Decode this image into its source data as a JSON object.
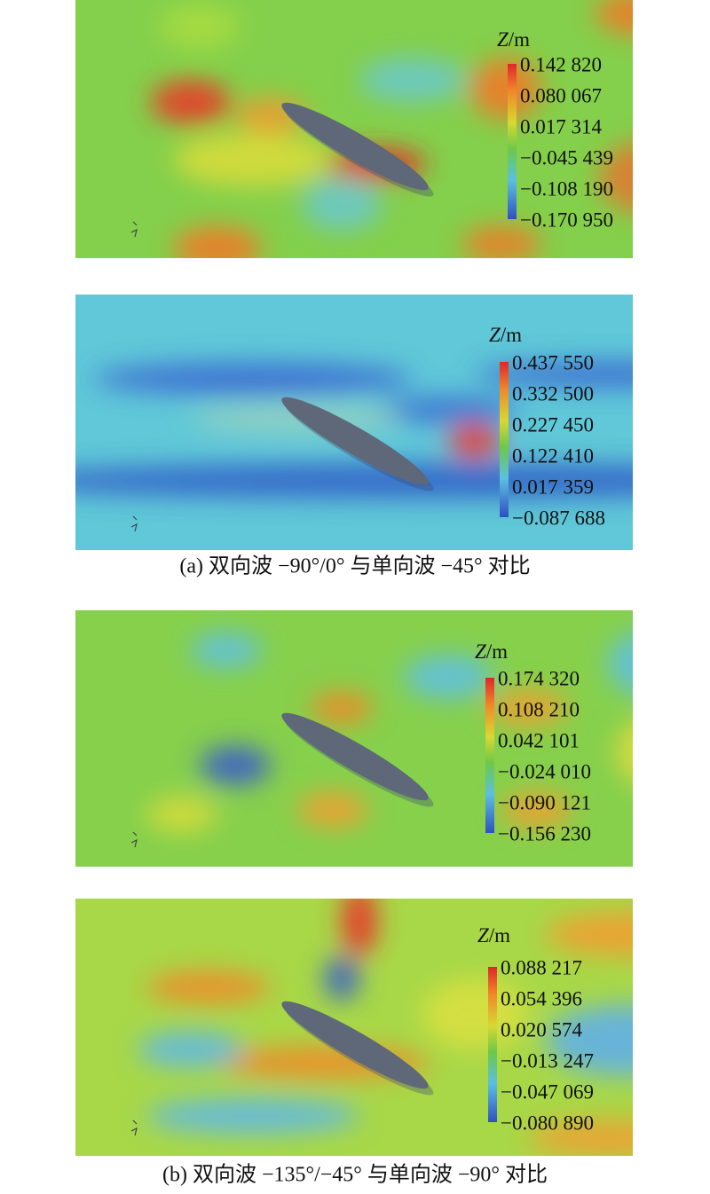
{
  "panels": [
    {
      "legend_title": {
        "symbol": "Z",
        "unit": "/m"
      },
      "legend_labels": [
        "0.142 820",
        "0.080 067",
        "0.017 314",
        "−0.045 439",
        "−0.108 190",
        "−0.170 950"
      ]
    },
    {
      "legend_title": {
        "symbol": "Z",
        "unit": "/m"
      },
      "legend_labels": [
        "0.437 550",
        "0.332 500",
        "0.227 450",
        "0.122 410",
        "0.017 359",
        "−0.087 688"
      ]
    },
    {
      "legend_title": {
        "symbol": "Z",
        "unit": "/m"
      },
      "legend_labels": [
        "0.174 320",
        "0.108 210",
        "0.042 101",
        "−0.024 010",
        "−0.090 121",
        "−0.156 230"
      ]
    },
    {
      "legend_title": {
        "symbol": "Z",
        "unit": "/m"
      },
      "legend_labels": [
        "0.088 217",
        "0.054 396",
        "0.020 574",
        "−0.013 247",
        "−0.047 069",
        "−0.080 890"
      ]
    }
  ],
  "captions": [
    "(a) 双向波 −90°/0° 与单向波 −45° 对比",
    "(b) 双向波 −135°/−45° 与单向波 −90° 对比"
  ]
}
